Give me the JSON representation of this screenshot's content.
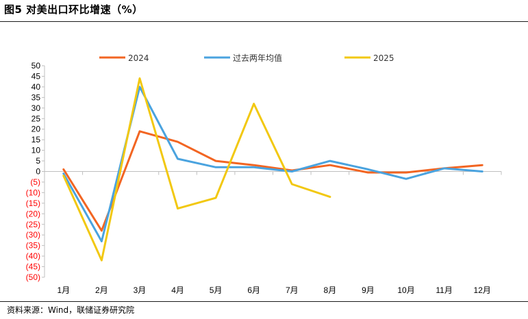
{
  "figure_title": "图5  对美出口环比增速（%）",
  "source_note": "资料来源：Wind，联储证券研究院",
  "chart_data": {
    "type": "line",
    "categories": [
      "1月",
      "2月",
      "3月",
      "4月",
      "5月",
      "6月",
      "7月",
      "8月",
      "9月",
      "10月",
      "11月",
      "12月"
    ],
    "ylim": [
      -50,
      50
    ],
    "yticks": [
      50,
      45,
      40,
      35,
      30,
      25,
      20,
      15,
      10,
      5,
      0,
      -5,
      -10,
      -15,
      -20,
      -25,
      -30,
      -35,
      -40,
      -45,
      -50
    ],
    "ytick_labels": [
      "50",
      "45",
      "40",
      "35",
      "30",
      "25",
      "20",
      "15",
      "10",
      "5",
      "0",
      "(5)",
      "(10)",
      "(15)",
      "(20)",
      "(25)",
      "(30)",
      "(35)",
      "(40)",
      "(45)",
      "(50)"
    ],
    "negative_tick_color": "#ff0000",
    "series": [
      {
        "name": "2024",
        "color": "#f26522",
        "values": [
          1,
          -28,
          19,
          14,
          5,
          3,
          0.5,
          3,
          -0.5,
          -0.5,
          1.5,
          3
        ]
      },
      {
        "name": "过去两年均值",
        "color": "#4aa3df",
        "values": [
          -1,
          -33,
          40,
          6,
          2,
          2,
          0,
          5,
          1,
          -3.5,
          1.5,
          0
        ]
      },
      {
        "name": "2025",
        "color": "#f2c811",
        "values": [
          -2,
          -42,
          44,
          -17.5,
          -12.5,
          32,
          -6,
          -12,
          null,
          null,
          null,
          null
        ]
      }
    ]
  }
}
